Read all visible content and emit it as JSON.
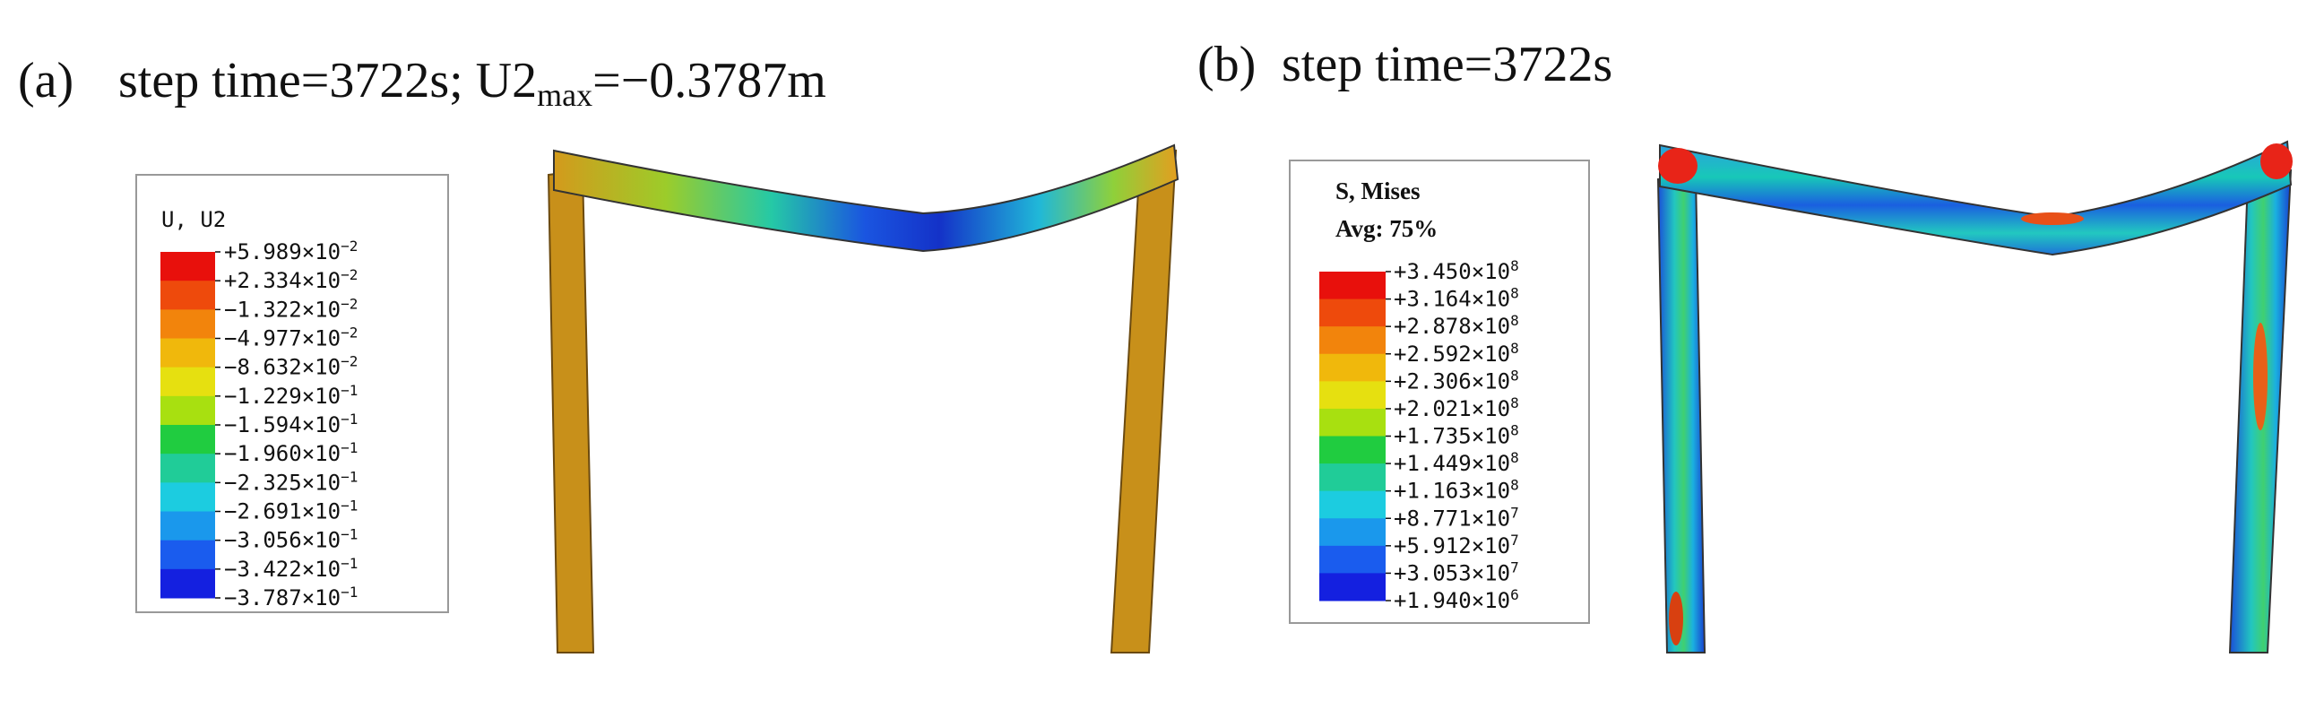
{
  "panels": [
    {
      "label": "(a)",
      "title": {
        "main": "step time=3722s; U2",
        "subscript": "max",
        "rest": "=−0.3787m"
      },
      "legend": {
        "title": "U, U2",
        "entries": [
          {
            "mantissa": "+5.989",
            "times": "×10",
            "exponent": "−2"
          },
          {
            "mantissa": "+2.334",
            "times": "×10",
            "exponent": "−2"
          },
          {
            "mantissa": "−1.322",
            "times": "×10",
            "exponent": "−2"
          },
          {
            "mantissa": "−4.977",
            "times": "×10",
            "exponent": "−2"
          },
          {
            "mantissa": "−8.632",
            "times": "×10",
            "exponent": "−2"
          },
          {
            "mantissa": "−1.229",
            "times": "×10",
            "exponent": "−1"
          },
          {
            "mantissa": "−1.594",
            "times": "×10",
            "exponent": "−1"
          },
          {
            "mantissa": "−1.960",
            "times": "×10",
            "exponent": "−1"
          },
          {
            "mantissa": "−2.325",
            "times": "×10",
            "exponent": "−1"
          },
          {
            "mantissa": "−2.691",
            "times": "×10",
            "exponent": "−1"
          },
          {
            "mantissa": "−3.056",
            "times": "×10",
            "exponent": "−1"
          },
          {
            "mantissa": "−3.422",
            "times": "×10",
            "exponent": "−1"
          },
          {
            "mantissa": "−3.787",
            "times": "×10",
            "exponent": "−1"
          }
        ]
      }
    },
    {
      "label": "(b)",
      "title": {
        "main": "step time=3722s"
      },
      "legend": {
        "title": "S, Mises",
        "subtitle": "Avg: 75%",
        "entries": [
          {
            "mantissa": "+3.450",
            "times": "×10",
            "exponent": "8"
          },
          {
            "mantissa": "+3.164",
            "times": "×10",
            "exponent": "8"
          },
          {
            "mantissa": "+2.878",
            "times": "×10",
            "exponent": "8"
          },
          {
            "mantissa": "+2.592",
            "times": "×10",
            "exponent": "8"
          },
          {
            "mantissa": "+2.306",
            "times": "×10",
            "exponent": "8"
          },
          {
            "mantissa": "+2.021",
            "times": "×10",
            "exponent": "8"
          },
          {
            "mantissa": "+1.735",
            "times": "×10",
            "exponent": "8"
          },
          {
            "mantissa": "+1.449",
            "times": "×10",
            "exponent": "8"
          },
          {
            "mantissa": "+1.163",
            "times": "×10",
            "exponent": "8"
          },
          {
            "mantissa": "+8.771",
            "times": "×10",
            "exponent": "7"
          },
          {
            "mantissa": "+5.912",
            "times": "×10",
            "exponent": "7"
          },
          {
            "mantissa": "+3.053",
            "times": "×10",
            "exponent": "7"
          },
          {
            "mantissa": "+1.940",
            "times": "×10",
            "exponent": "6"
          }
        ]
      }
    }
  ]
}
